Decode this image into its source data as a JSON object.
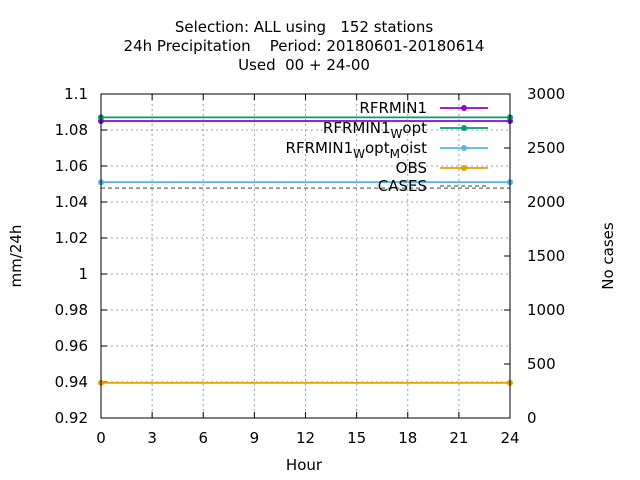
{
  "chart_data": {
    "type": "line",
    "title_lines": [
      "Selection: ALL using   152 stations",
      "24h Precipitation    Period: 20180601-20180614",
      "Used  00 + 24-00"
    ],
    "xlabel": "Hour",
    "ylabel": "mm/24h",
    "y2label": "No cases",
    "x_ticks": [
      0,
      3,
      6,
      9,
      12,
      15,
      18,
      21,
      24
    ],
    "y_ticks": [
      "0.92",
      "0.94",
      "0.96",
      "0.98",
      "1",
      "1.02",
      "1.04",
      "1.06",
      "1.08",
      "1.1"
    ],
    "y2_ticks": [
      0,
      500,
      1000,
      1500,
      2000,
      2500,
      3000
    ],
    "xlim": [
      0,
      24
    ],
    "ylim": [
      0.92,
      1.1
    ],
    "y2lim": [
      0,
      3000
    ],
    "grid": true,
    "legend_position": "top-right",
    "series": [
      {
        "name": "RFRMIN1",
        "label_main": "RFRMIN1",
        "label_sub": "",
        "label_tail": "",
        "color": "#9400d3",
        "axis": "y",
        "x": [
          0,
          24
        ],
        "y": [
          1.085,
          1.085
        ]
      },
      {
        "name": "RFRMIN1_Wopt",
        "label_main": "RFRMIN1",
        "label_sub": "W",
        "label_tail": "opt",
        "color": "#009e73",
        "axis": "y",
        "x": [
          0,
          24
        ],
        "y": [
          1.087,
          1.087
        ]
      },
      {
        "name": "RFRMIN1_Wopt_Moist",
        "label_main": "RFRMIN1",
        "label_sub": "W",
        "label_tail": "opt",
        "label_sub2": "M",
        "label_tail2": "oist",
        "color": "#56b4e9",
        "axis": "y",
        "x": [
          0,
          24
        ],
        "y": [
          1.051,
          1.051
        ]
      },
      {
        "name": "OBS",
        "label_main": "OBS",
        "label_sub": "",
        "label_tail": "",
        "color": "#e69f00",
        "axis": "y",
        "x": [
          0,
          24
        ],
        "y": [
          0.9395,
          0.9395
        ]
      },
      {
        "name": "CASES",
        "label_main": "CASES",
        "label_sub": "",
        "label_tail": "",
        "color": "#808080",
        "axis": "y2",
        "dashed": true,
        "x": [
          0,
          24
        ],
        "y": [
          2128,
          2128
        ]
      }
    ]
  }
}
